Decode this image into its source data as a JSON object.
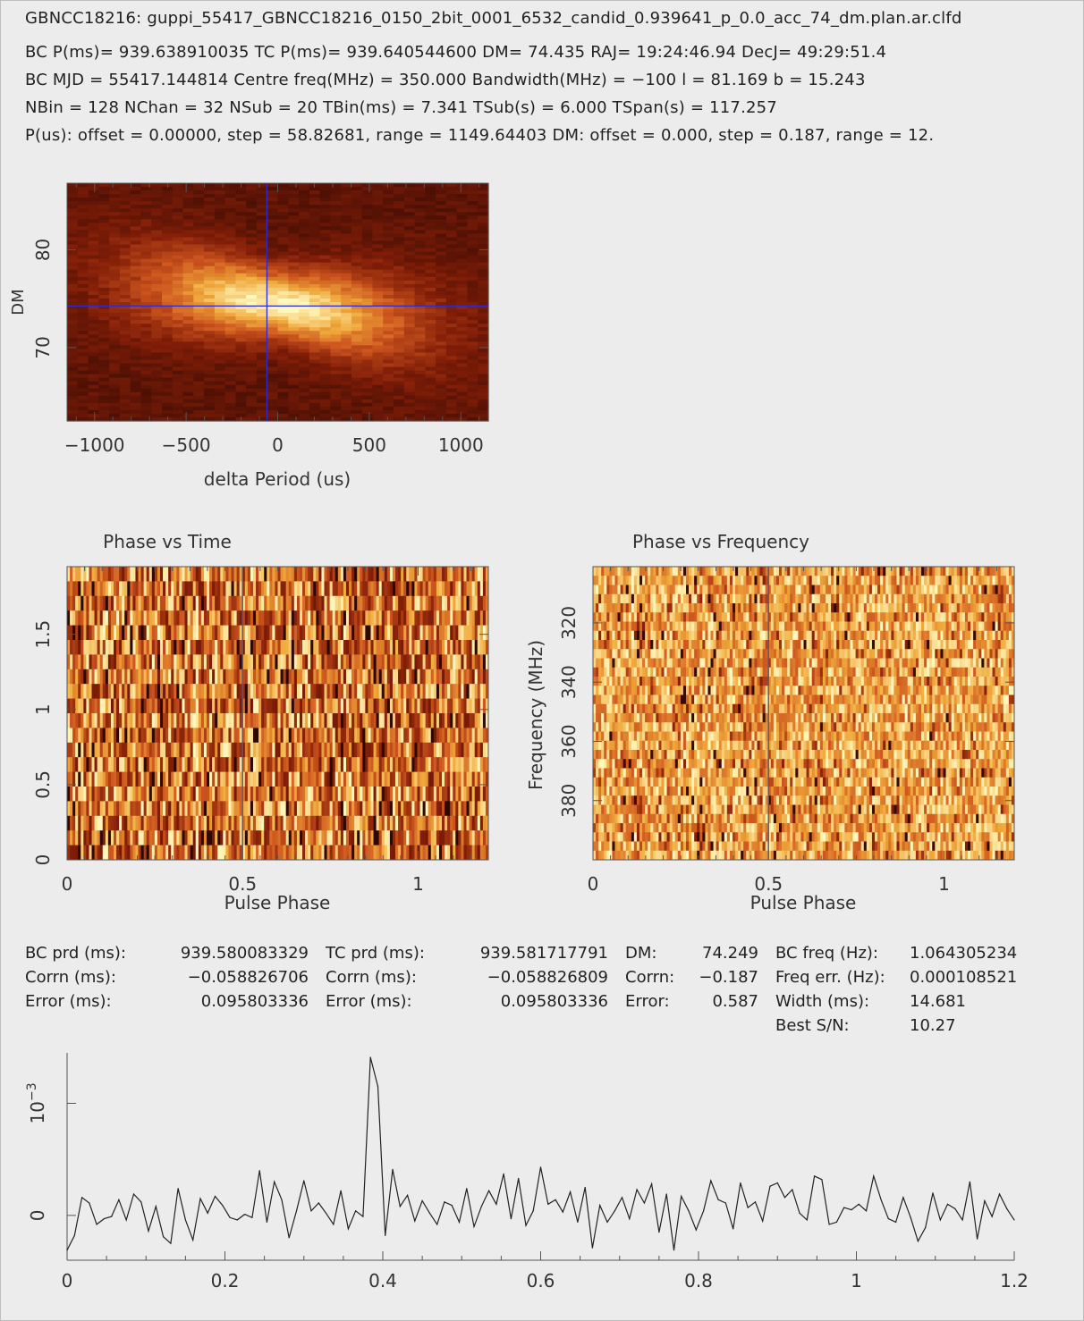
{
  "header": {
    "title": "GBNCC18216: guppi_55417_GBNCC18216_0150_2bit_0001_6532_candid_0.939641_p_0.0_acc_74_dm.plan.ar.clfd",
    "line1": "BC P(ms)= 939.638910035 TC P(ms)= 939.640544600 DM= 74.435 RAJ= 19:24:46.94 DecJ= 49:29:51.4",
    "line2": "BC MJD = 55417.144814 Centre freq(MHz) = 350.000 Bandwidth(MHz) = −100 l = 81.169 b = 15.243",
    "line3": "NBin = 128 NChan = 32 NSub = 20 TBin(ms) = 7.341 TSub(s) = 6.000 TSpan(s) = 117.257",
    "line4": "P(us): offset = 0.00000, step = 58.82681, range = 1149.64403 DM: offset = 0.000, step = 0.187, range = 12."
  },
  "chart_data": [
    {
      "type": "heatmap",
      "name": "dm-vs-period",
      "title": "",
      "xlabel": "delta Period (us)",
      "ylabel": "DM",
      "xlim": [
        -1150,
        1150
      ],
      "ylim": [
        62.5,
        86.8
      ],
      "xticks": [
        "−1000",
        "−500",
        "0",
        "500",
        "1000"
      ],
      "xtick_values": [
        -1000,
        -500,
        0,
        500,
        1000
      ],
      "yticks": [
        "70",
        "80"
      ],
      "ytick_values": [
        70,
        80
      ],
      "peak": {
        "x": 0,
        "y": 74.435
      },
      "crosshair": {
        "x": -58.8,
        "y": 74.25
      }
    },
    {
      "type": "heatmap",
      "name": "phase-vs-time",
      "title": "Phase vs Time",
      "xlabel": "Pulse Phase",
      "ylabel": "",
      "xlim": [
        0,
        1.2
      ],
      "ylim": [
        0,
        1.95
      ],
      "xticks": [
        "0",
        "0.5",
        "1"
      ],
      "xtick_values": [
        0,
        0.5,
        1
      ],
      "yticks": [
        "0",
        "0.5",
        "1",
        "1.5"
      ],
      "ytick_values": [
        0,
        0.5,
        1,
        1.5
      ],
      "marker_x": 0.5
    },
    {
      "type": "heatmap",
      "name": "phase-vs-frequency",
      "title": "Phase vs Frequency",
      "xlabel": "Pulse Phase",
      "ylabel": "Frequency (MHz)",
      "xlim": [
        0,
        1.2
      ],
      "ylim": [
        400,
        301
      ],
      "xticks": [
        "0",
        "0.5",
        "1"
      ],
      "xtick_values": [
        0,
        0.5,
        1
      ],
      "yticks": [
        "320",
        "340",
        "360",
        "380"
      ],
      "ytick_values": [
        320,
        340,
        360,
        380
      ],
      "marker_x": 0.5
    },
    {
      "type": "line",
      "name": "pulse-profile",
      "title": "",
      "xlabel": "",
      "ylabel": "",
      "ylabel_exponent": "10",
      "ylabel_power": "−3",
      "xlim": [
        0,
        1.2
      ],
      "ylim": [
        -0.0004,
        0.00145
      ],
      "xticks": [
        "0",
        "0.2",
        "0.4",
        "0.6",
        "0.8",
        "1",
        "1.2"
      ],
      "xtick_values": [
        0,
        0.2,
        0.4,
        0.6,
        0.8,
        1,
        1.2
      ],
      "yticks": [
        "0"
      ],
      "ytick_values": [
        0
      ],
      "y_exponent_tick": 0.001,
      "x": [
        0.0,
        0.0094,
        0.0188,
        0.0281,
        0.0375,
        0.0469,
        0.0563,
        0.0656,
        0.075,
        0.0844,
        0.0938,
        0.1031,
        0.1125,
        0.1219,
        0.1313,
        0.1406,
        0.15,
        0.1594,
        0.1688,
        0.1781,
        0.1875,
        0.1969,
        0.2063,
        0.2156,
        0.225,
        0.2344,
        0.2438,
        0.2531,
        0.2625,
        0.2719,
        0.2813,
        0.2906,
        0.3,
        0.3094,
        0.3188,
        0.3281,
        0.3375,
        0.3469,
        0.3563,
        0.3656,
        0.375,
        0.3844,
        0.3938,
        0.4031,
        0.4125,
        0.4219,
        0.4313,
        0.4406,
        0.45,
        0.4594,
        0.4688,
        0.4781,
        0.4875,
        0.4969,
        0.5063,
        0.5156,
        0.525,
        0.5344,
        0.5438,
        0.5531,
        0.5625,
        0.5719,
        0.5813,
        0.5906,
        0.6,
        0.6094,
        0.6188,
        0.6281,
        0.6375,
        0.6469,
        0.6563,
        0.6656,
        0.675,
        0.6844,
        0.6938,
        0.7031,
        0.7125,
        0.7219,
        0.7313,
        0.7406,
        0.75,
        0.7594,
        0.7688,
        0.7781,
        0.7875,
        0.7969,
        0.8063,
        0.8156,
        0.825,
        0.8344,
        0.8438,
        0.8531,
        0.8625,
        0.8719,
        0.8813,
        0.8906,
        0.9,
        0.9094,
        0.9188,
        0.9281,
        0.9375,
        0.9469,
        0.9563,
        0.9656,
        0.975,
        0.9844,
        0.9938,
        1.0031,
        1.0125,
        1.0219,
        1.0313,
        1.0406,
        1.05,
        1.0594,
        1.0688,
        1.0781,
        1.0875,
        1.0969,
        1.1063,
        1.1156,
        1.125,
        1.1344,
        1.1438,
        1.1531,
        1.1625,
        1.1719,
        1.1813,
        1.1906,
        1.2
      ],
      "y": [
        -0.00031,
        -0.00018,
        0.00016,
        0.00011,
        -8e-05,
        -3e-05,
        -1e-05,
        0.00014,
        -4e-05,
        0.00019,
        0.00012,
        -0.00014,
        8e-05,
        -0.00019,
        -0.00025,
        0.00024,
        -4e-05,
        -0.00022,
        0.00015,
        2e-05,
        0.00017,
        9e-05,
        -2e-05,
        -4e-05,
        1e-05,
        -2e-05,
        0.0004,
        -6e-05,
        0.0003,
        0.00014,
        -0.0002,
        4e-05,
        0.00031,
        4e-05,
        0.00011,
        2e-05,
        -8e-05,
        0.00022,
        -0.00012,
        4e-05,
        -1e-05,
        0.00141,
        0.00115,
        -0.00018,
        0.00041,
        8e-05,
        0.00018,
        -5e-05,
        0.00013,
        2e-05,
        -8e-05,
        0.00012,
        9e-05,
        -6e-05,
        0.00024,
        -0.0001,
        8e-05,
        0.00022,
        0.0001,
        0.00037,
        -3e-05,
        0.00033,
        -9e-05,
        4e-05,
        0.00043,
        0.0001,
        0.00014,
        3e-05,
        0.00021,
        -6e-05,
        0.00025,
        -0.00029,
        9e-05,
        -6e-05,
        4e-05,
        0.00016,
        -3e-05,
        0.00023,
        0.00011,
        0.00028,
        -0.00015,
        0.00019,
        -0.00031,
        0.00017,
        4e-05,
        -0.00013,
        4e-05,
        0.00031,
        0.00014,
        0.00011,
        -0.00012,
        0.00029,
        7e-05,
        0.00012,
        -5e-05,
        0.00026,
        0.00029,
        0.00016,
        0.00023,
        2e-05,
        -4e-05,
        0.00035,
        0.00032,
        -8e-05,
        -6e-05,
        7e-05,
        5e-05,
        0.0001,
        4e-05,
        0.00035,
        0.00014,
        -3e-05,
        -6e-05,
        0.00016,
        -2e-05,
        -0.00023,
        -0.00011,
        0.0002,
        -4e-05,
        0.0001,
        6e-05,
        -4e-05,
        0.0003,
        -0.00021,
        0.00013,
        -1e-05,
        0.00019,
        6e-05,
        -4e-05
      ]
    }
  ],
  "stats": {
    "rows": [
      [
        "BC prd (ms):",
        "939.580083329",
        "TC prd (ms):",
        "939.581717791",
        "DM:",
        "74.249",
        "BC freq (Hz):",
        "1.064305234"
      ],
      [
        "Corrn (ms):",
        "−0.058826706",
        "Corrn (ms):",
        "−0.058826809",
        "Corrn:",
        "−0.187",
        "Freq err. (Hz):",
        "0.000108521"
      ],
      [
        "Error (ms):",
        "0.095803336",
        "Error (ms):",
        "0.095803336",
        "Error:",
        "0.587",
        "Width (ms):",
        "14.681"
      ],
      [
        "",
        "",
        "",
        "",
        "",
        "",
        "Best S/N:",
        "10.27"
      ]
    ]
  },
  "colors": {
    "background": "#ececec",
    "heat_dark": "#3a0a04",
    "heat_mid": "#d2541c",
    "heat_bright": "#fff3a0",
    "crosshair": "#2b2bd6",
    "marker": "#4a5a9a",
    "line": "#222222"
  }
}
